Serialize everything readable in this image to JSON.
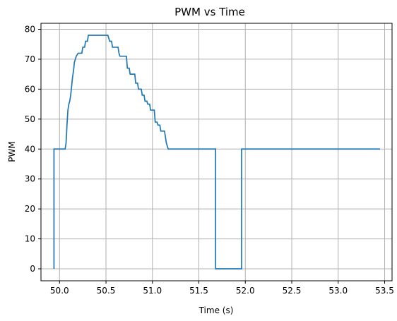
{
  "chart_data": {
    "type": "line",
    "title": "PWM vs Time",
    "xlabel": "Time (s)",
    "ylabel": "PWM",
    "xlim": [
      49.8,
      53.58
    ],
    "ylim": [
      -4,
      82
    ],
    "grid": true,
    "colors": {
      "line": "#1f77b4",
      "grid": "#b0b0b0",
      "axes": "#000000",
      "background": "#ffffff"
    },
    "x_ticks": [
      50.0,
      50.5,
      51.0,
      51.5,
      52.0,
      52.5,
      53.0,
      53.5
    ],
    "x_tick_labels": [
      "50.0",
      "50.5",
      "51.0",
      "51.5",
      "52.0",
      "52.5",
      "53.0",
      "53.5"
    ],
    "y_ticks": [
      0,
      10,
      20,
      30,
      40,
      50,
      60,
      70,
      80
    ],
    "y_tick_labels": [
      "0",
      "10",
      "20",
      "30",
      "40",
      "50",
      "60",
      "70",
      "80"
    ],
    "series": [
      {
        "values": [
          [
            49.94,
            0
          ],
          [
            49.94,
            40
          ],
          [
            50.06,
            40
          ],
          [
            50.07,
            42
          ],
          [
            50.08,
            48
          ],
          [
            50.09,
            53
          ],
          [
            50.1,
            55
          ],
          [
            50.11,
            56
          ],
          [
            50.12,
            58
          ],
          [
            50.13,
            61
          ],
          [
            50.14,
            64
          ],
          [
            50.15,
            66
          ],
          [
            50.16,
            69
          ],
          [
            50.17,
            70
          ],
          [
            50.18,
            71
          ],
          [
            50.2,
            72
          ],
          [
            50.24,
            72
          ],
          [
            50.25,
            74
          ],
          [
            50.27,
            74
          ],
          [
            50.28,
            76
          ],
          [
            50.3,
            76
          ],
          [
            50.31,
            78
          ],
          [
            50.52,
            78
          ],
          [
            50.54,
            76
          ],
          [
            50.56,
            76
          ],
          [
            50.57,
            74
          ],
          [
            50.63,
            74
          ],
          [
            50.64,
            72
          ],
          [
            50.65,
            71
          ],
          [
            50.72,
            71
          ],
          [
            50.73,
            67
          ],
          [
            50.75,
            67
          ],
          [
            50.76,
            65
          ],
          [
            50.81,
            65
          ],
          [
            50.82,
            62
          ],
          [
            50.84,
            62
          ],
          [
            50.85,
            60
          ],
          [
            50.88,
            60
          ],
          [
            50.89,
            58
          ],
          [
            50.91,
            58
          ],
          [
            50.92,
            56
          ],
          [
            50.94,
            56
          ],
          [
            50.95,
            55
          ],
          [
            50.97,
            55
          ],
          [
            50.98,
            53
          ],
          [
            51.02,
            53
          ],
          [
            51.03,
            49
          ],
          [
            51.05,
            49
          ],
          [
            51.06,
            48
          ],
          [
            51.08,
            48
          ],
          [
            51.09,
            46
          ],
          [
            51.13,
            46
          ],
          [
            51.14,
            44
          ],
          [
            51.15,
            42
          ],
          [
            51.16,
            41
          ],
          [
            51.17,
            40
          ],
          [
            51.68,
            40
          ],
          [
            51.68,
            0
          ],
          [
            51.96,
            0
          ],
          [
            51.96,
            40
          ],
          [
            53.45,
            40
          ]
        ]
      }
    ]
  }
}
